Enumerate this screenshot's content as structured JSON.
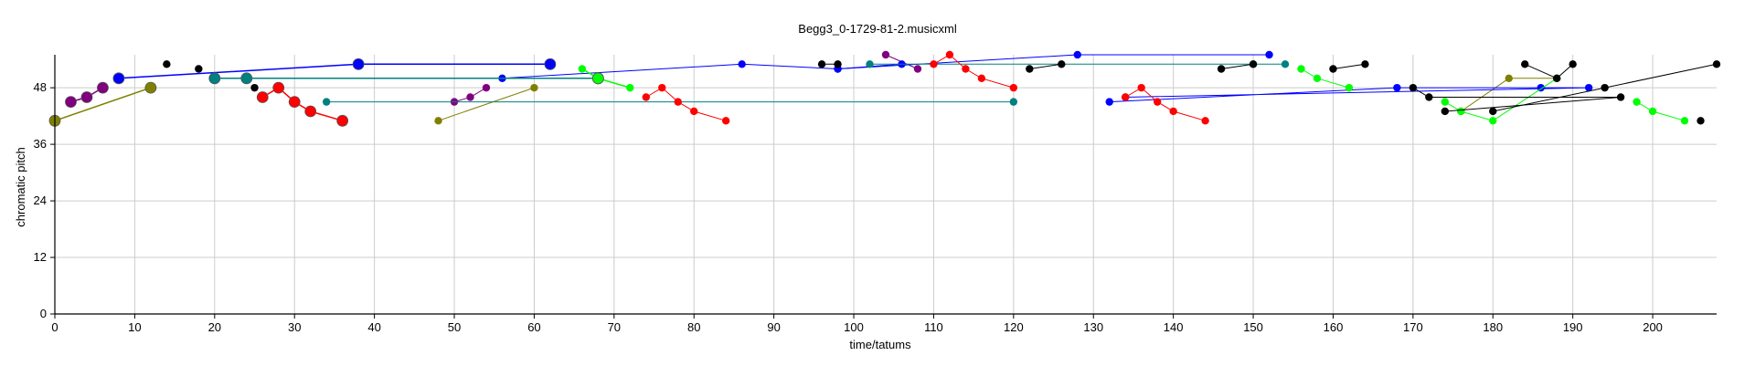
{
  "chart_data": {
    "type": "scatter",
    "title": "Begg3_0-1729-81-2.musicxml",
    "xlabel": "time/tatums",
    "ylabel": "chromatic pitch",
    "xlim": [
      0,
      208
    ],
    "ylim": [
      0,
      55
    ],
    "xticks": [
      0,
      10,
      20,
      30,
      40,
      50,
      60,
      70,
      80,
      90,
      100,
      110,
      120,
      130,
      140,
      150,
      160,
      170,
      180,
      190,
      200
    ],
    "yticks": [
      0,
      12,
      24,
      36,
      48
    ],
    "grid": true,
    "series": [
      {
        "color": "#808000",
        "points": [
          [
            0,
            41,
            2
          ],
          [
            12,
            48,
            2
          ]
        ]
      },
      {
        "color": "#808000",
        "points": [
          [
            48,
            41,
            1
          ],
          [
            60,
            48,
            1
          ]
        ]
      },
      {
        "color": "#808000",
        "points": [
          [
            176,
            43,
            1
          ],
          [
            182,
            50,
            1
          ],
          [
            188,
            50,
            1
          ]
        ]
      },
      {
        "color": "#800080",
        "points": [
          [
            2,
            45,
            2
          ],
          [
            4,
            46,
            2
          ],
          [
            6,
            48,
            2
          ]
        ]
      },
      {
        "color": "#800080",
        "points": [
          [
            50,
            45,
            1
          ],
          [
            52,
            46,
            1
          ],
          [
            54,
            48,
            1
          ]
        ]
      },
      {
        "color": "#800080",
        "points": [
          [
            104,
            55,
            1
          ],
          [
            108,
            52,
            1
          ]
        ]
      },
      {
        "color": "#0000ff",
        "points": [
          [
            8,
            50,
            2
          ],
          [
            38,
            53,
            2
          ],
          [
            62,
            53,
            2
          ]
        ]
      },
      {
        "color": "#0000ff",
        "points": [
          [
            56,
            50,
            1
          ],
          [
            86,
            53,
            1
          ],
          [
            98,
            52,
            1
          ],
          [
            128,
            55,
            1
          ],
          [
            152,
            55,
            1
          ]
        ]
      },
      {
        "color": "#0000ff",
        "points": [
          [
            106,
            53,
            1
          ],
          [
            98,
            52,
            1
          ]
        ]
      },
      {
        "color": "#0000ff",
        "points": [
          [
            132,
            45,
            1
          ],
          [
            168,
            48,
            1
          ],
          [
            186,
            48,
            1
          ],
          [
            192,
            48,
            1
          ],
          [
            134,
            46,
            1
          ]
        ]
      },
      {
        "color": "#008080",
        "points": [
          [
            20,
            50,
            2
          ],
          [
            24,
            50,
            2
          ],
          [
            68,
            50,
            2
          ]
        ]
      },
      {
        "color": "#008080",
        "points": [
          [
            34,
            45,
            1
          ],
          [
            120,
            45,
            1
          ]
        ]
      },
      {
        "color": "#008080",
        "points": [
          [
            102,
            53,
            1
          ],
          [
            150,
            53,
            1
          ],
          [
            154,
            53,
            1
          ]
        ]
      },
      {
        "color": "#ff0000",
        "points": [
          [
            26,
            46,
            2
          ],
          [
            28,
            48,
            2
          ],
          [
            30,
            45,
            2
          ],
          [
            32,
            43,
            2
          ],
          [
            36,
            41,
            2
          ]
        ]
      },
      {
        "color": "#ff0000",
        "points": [
          [
            74,
            46,
            1
          ],
          [
            76,
            48,
            1
          ],
          [
            78,
            45,
            1
          ],
          [
            80,
            43,
            1
          ],
          [
            84,
            41,
            1
          ]
        ]
      },
      {
        "color": "#ff0000",
        "points": [
          [
            110,
            53,
            1
          ],
          [
            112,
            55,
            1
          ],
          [
            114,
            52,
            1
          ],
          [
            116,
            50,
            1
          ],
          [
            120,
            48,
            1
          ]
        ]
      },
      {
        "color": "#ff0000",
        "points": [
          [
            134,
            46,
            1
          ],
          [
            136,
            48,
            1
          ],
          [
            138,
            45,
            1
          ],
          [
            140,
            43,
            1
          ],
          [
            144,
            41,
            1
          ]
        ]
      },
      {
        "color": "#00ff00",
        "points": [
          [
            66,
            52,
            1
          ],
          [
            68,
            50,
            2
          ],
          [
            72,
            48,
            1
          ]
        ]
      },
      {
        "color": "#00ff00",
        "points": [
          [
            156,
            52,
            1
          ],
          [
            158,
            50,
            1
          ],
          [
            162,
            48,
            1
          ]
        ]
      },
      {
        "color": "#00ff00",
        "points": [
          [
            174,
            45,
            1
          ],
          [
            176,
            43,
            1
          ],
          [
            180,
            41,
            1
          ],
          [
            188,
            50,
            1
          ]
        ]
      },
      {
        "color": "#00ff00",
        "points": [
          [
            198,
            45,
            1
          ],
          [
            200,
            43,
            1
          ],
          [
            204,
            41,
            1
          ]
        ]
      },
      {
        "color": "#000000",
        "points": [
          [
            14,
            53,
            1
          ]
        ]
      },
      {
        "color": "#000000",
        "points": [
          [
            18,
            52,
            1
          ]
        ]
      },
      {
        "color": "#000000",
        "points": [
          [
            25,
            48,
            1
          ]
        ]
      },
      {
        "color": "#000000",
        "points": [
          [
            96,
            53,
            1
          ],
          [
            98,
            53,
            1
          ]
        ]
      },
      {
        "color": "#000000",
        "points": [
          [
            122,
            52,
            1
          ],
          [
            126,
            53,
            1
          ]
        ]
      },
      {
        "color": "#000000",
        "points": [
          [
            146,
            52,
            1
          ],
          [
            150,
            53,
            1
          ]
        ]
      },
      {
        "color": "#000000",
        "points": [
          [
            160,
            52,
            1
          ],
          [
            164,
            53,
            1
          ]
        ]
      },
      {
        "color": "#000000",
        "points": [
          [
            170,
            48,
            1
          ],
          [
            172,
            46,
            1
          ],
          [
            196,
            46,
            1
          ],
          [
            174,
            43,
            1
          ]
        ]
      },
      {
        "color": "#000000",
        "points": [
          [
            180,
            43,
            1
          ],
          [
            208,
            53,
            1
          ]
        ]
      },
      {
        "color": "#000000",
        "points": [
          [
            184,
            53,
            1
          ],
          [
            188,
            50,
            1
          ],
          [
            190,
            53,
            1
          ]
        ]
      },
      {
        "color": "#000000",
        "points": [
          [
            194,
            48,
            1
          ]
        ]
      },
      {
        "color": "#000000",
        "points": [
          [
            206,
            41,
            1
          ]
        ]
      }
    ]
  }
}
